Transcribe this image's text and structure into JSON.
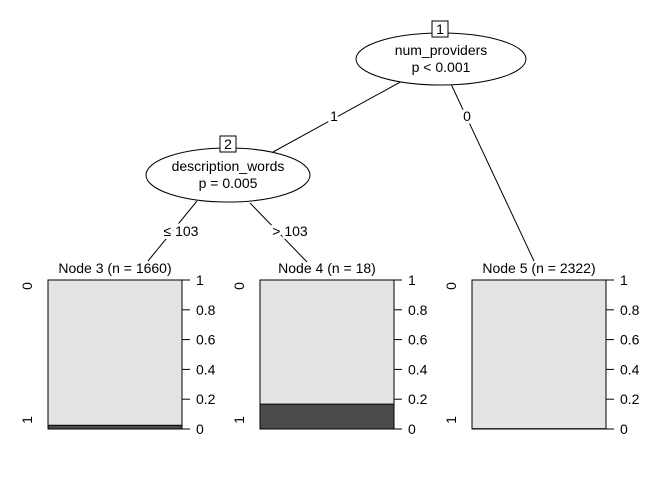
{
  "chart_data": {
    "type": "bar",
    "title": "",
    "description": "Conditional inference tree: two inner split nodes (ellipses) and three terminal stacked-bar nodes showing proportion of class 1 (dark) vs class 0 (light)",
    "tree": {
      "inner_nodes": [
        {
          "id": "1",
          "label": "num_providers",
          "pvalue": "p < 0.001",
          "edges": [
            {
              "label": "1"
            },
            {
              "label": "0"
            }
          ]
        },
        {
          "id": "2",
          "label": "description_words",
          "pvalue": "p = 0.005",
          "edges": [
            {
              "label": "≤ 103"
            },
            {
              "label": "> 103"
            }
          ]
        }
      ]
    },
    "terminal_nodes": [
      {
        "title": "Node 3 (n = 1660)",
        "n": 1660,
        "proportions": {
          "0": 0.975,
          "1": 0.025
        }
      },
      {
        "title": "Node 4 (n = 18)",
        "n": 18,
        "proportions": {
          "0": 0.833,
          "1": 0.167
        }
      },
      {
        "title": "Node 5 (n = 2322)",
        "n": 2322,
        "proportions": {
          "0": 0.998,
          "1": 0.002
        }
      }
    ],
    "y_axis": {
      "range": [
        0,
        1
      ],
      "ticks": [
        0,
        0.2,
        0.4,
        0.6,
        0.8,
        1
      ],
      "tick_labels": [
        "0",
        "0.2",
        "0.4",
        "0.6",
        "0.8",
        "1"
      ],
      "position": "right"
    },
    "category_labels": [
      "0",
      "1"
    ],
    "legend": "none",
    "grid": false
  },
  "colors": {
    "background": "#ffffff",
    "bar_light": "#e4e4e4",
    "bar_dark": "#4b4b4b",
    "stroke": "#000000",
    "text": "#000000"
  }
}
